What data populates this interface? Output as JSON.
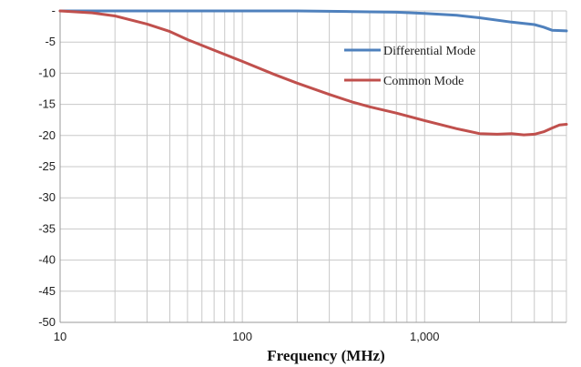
{
  "chart_data": {
    "type": "line",
    "title": "",
    "xlabel": "Frequency (MHz)",
    "ylabel": "",
    "x_scale": "log",
    "xlim": [
      10,
      6000
    ],
    "ylim": [
      -50,
      0
    ],
    "x_ticks": [
      {
        "value": 10,
        "label": "10"
      },
      {
        "value": 100,
        "label": "100"
      },
      {
        "value": 1000,
        "label": "1,000"
      }
    ],
    "y_ticks": [
      {
        "value": 0,
        "label": "-"
      },
      {
        "value": -5,
        "label": "-5"
      },
      {
        "value": -10,
        "label": "-10"
      },
      {
        "value": -15,
        "label": "-15"
      },
      {
        "value": -20,
        "label": "-20"
      },
      {
        "value": -25,
        "label": "-25"
      },
      {
        "value": -30,
        "label": "-30"
      },
      {
        "value": -35,
        "label": "-35"
      },
      {
        "value": -40,
        "label": "-40"
      },
      {
        "value": -45,
        "label": "-45"
      },
      {
        "value": -50,
        "label": "-50"
      }
    ],
    "grid": true,
    "legend_position": "top-right",
    "series": [
      {
        "name": "Differential Mode",
        "color": "#4f81bd",
        "points": [
          [
            10,
            0
          ],
          [
            20,
            0
          ],
          [
            50,
            0
          ],
          [
            100,
            0
          ],
          [
            200,
            0
          ],
          [
            400,
            -0.1
          ],
          [
            700,
            -0.2
          ],
          [
            1000,
            -0.4
          ],
          [
            1500,
            -0.7
          ],
          [
            2000,
            -1.1
          ],
          [
            3000,
            -1.8
          ],
          [
            4000,
            -2.2
          ],
          [
            4500,
            -2.6
          ],
          [
            5000,
            -3.1
          ],
          [
            6000,
            -3.2
          ]
        ]
      },
      {
        "name": "Common Mode",
        "color": "#c0504d",
        "points": [
          [
            10,
            0
          ],
          [
            15,
            -0.3
          ],
          [
            20,
            -0.8
          ],
          [
            30,
            -2.1
          ],
          [
            40,
            -3.3
          ],
          [
            50,
            -4.6
          ],
          [
            70,
            -6.3
          ],
          [
            100,
            -8.1
          ],
          [
            150,
            -10.2
          ],
          [
            200,
            -11.6
          ],
          [
            300,
            -13.4
          ],
          [
            400,
            -14.6
          ],
          [
            500,
            -15.4
          ],
          [
            700,
            -16.4
          ],
          [
            1000,
            -17.6
          ],
          [
            1500,
            -18.9
          ],
          [
            2000,
            -19.7
          ],
          [
            2500,
            -19.8
          ],
          [
            3000,
            -19.7
          ],
          [
            3500,
            -19.9
          ],
          [
            4000,
            -19.8
          ],
          [
            4500,
            -19.4
          ],
          [
            5000,
            -18.8
          ],
          [
            5500,
            -18.3
          ],
          [
            6000,
            -18.2
          ]
        ]
      }
    ]
  }
}
